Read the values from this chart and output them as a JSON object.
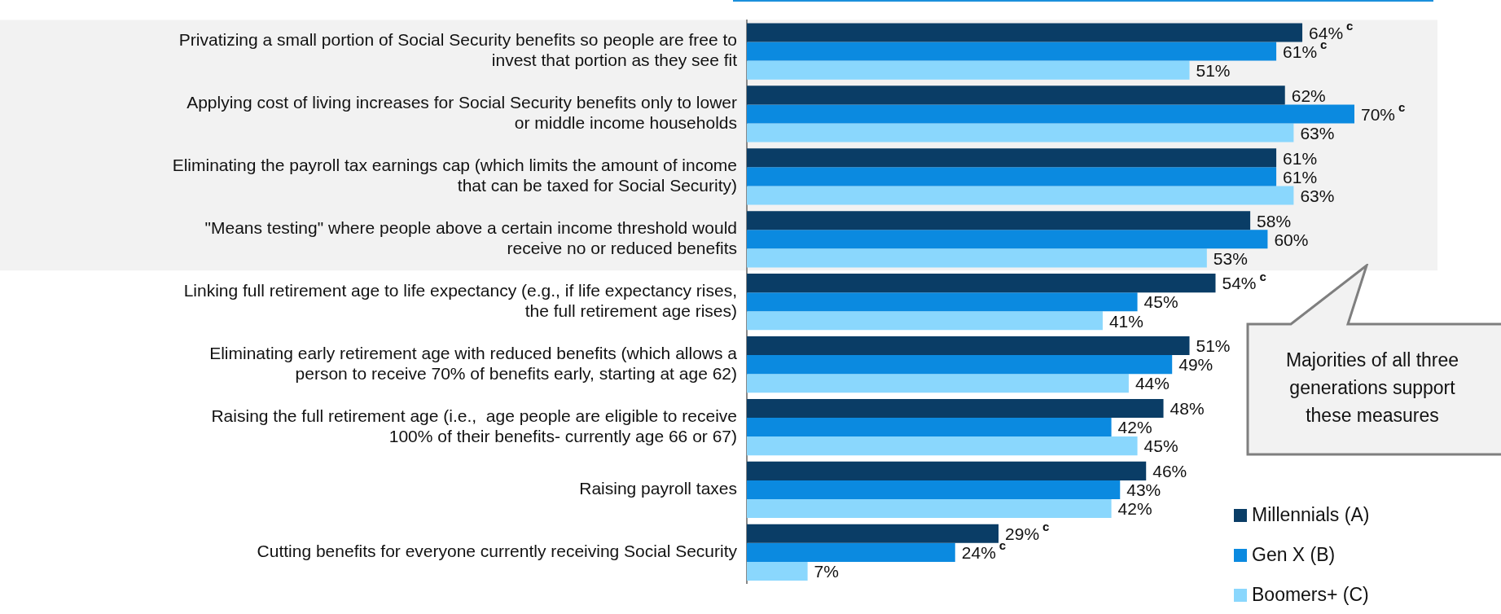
{
  "chart_data": {
    "type": "bar",
    "orientation": "horizontal",
    "categories": [
      "Privatizing a small portion of Social Security benefits so people are free to invest that portion as they see fit",
      "Applying cost of living increases for Social Security benefits only to lower or middle income households",
      "Eliminating the payroll tax earnings cap (which limits the amount of income that can be taxed for Social Security)",
      "\"Means testing\" where people above a certain income threshold would receive no or reduced benefits",
      "Linking full retirement age to life expectancy (e.g., if life expectancy rises, the full retirement age rises)",
      "Eliminating early retirement age with reduced benefits (which allows a person to receive 70% of benefits early, starting at age 62)",
      "Raising the full retirement age (i.e.,  age people are eligible to receive 100% of their benefits- currently age 66 or 67)",
      "Raising payroll taxes",
      "Cutting benefits for everyone currently receiving Social Security"
    ],
    "series": [
      {
        "name": "Millennials (A)",
        "color": "#0a3d66",
        "values": [
          64,
          62,
          61,
          58,
          54,
          51,
          48,
          46,
          29
        ],
        "value_labels": [
          "64%$^{c}$",
          "62%",
          "61%",
          "58%",
          "54%$^{c}$",
          "51%",
          "48%",
          "46%",
          "29%$^{c}$"
        ]
      },
      {
        "name": "Gen X (B)",
        "color": "#0b8ae0",
        "values": [
          61,
          70,
          61,
          60,
          45,
          49,
          42,
          43,
          24
        ],
        "value_labels": [
          "61%$^{c}$",
          "70%$^{c}$",
          "61%",
          "60%",
          "45%",
          "49%",
          "42%",
          "43%",
          "24%$^{c}$"
        ]
      },
      {
        "name": "Boomers+ (C)",
        "color": "#8ad7fd",
        "values": [
          51,
          63,
          63,
          53,
          41,
          44,
          45,
          42,
          7
        ],
        "value_labels": [
          "51%",
          "63%",
          "63%",
          "53%",
          "41%",
          "44%",
          "45%",
          "42%",
          "7%"
        ]
      }
    ],
    "tick_labels": "y",
    "grid": false,
    "legend": "bottom right",
    "bands": [
      {
        "axis": "y",
        "from": "Privatizing a small portion of Social Security benefits so people are free to invest that portion as they see fit",
        "to": "\"Means testing\" where people above a certain income threshold would receive no or reduced benefits",
        "color": "#f2f2f2"
      }
    ],
    "annotations": [
      "Majorities of all three generations support these measures"
    ]
  }
}
